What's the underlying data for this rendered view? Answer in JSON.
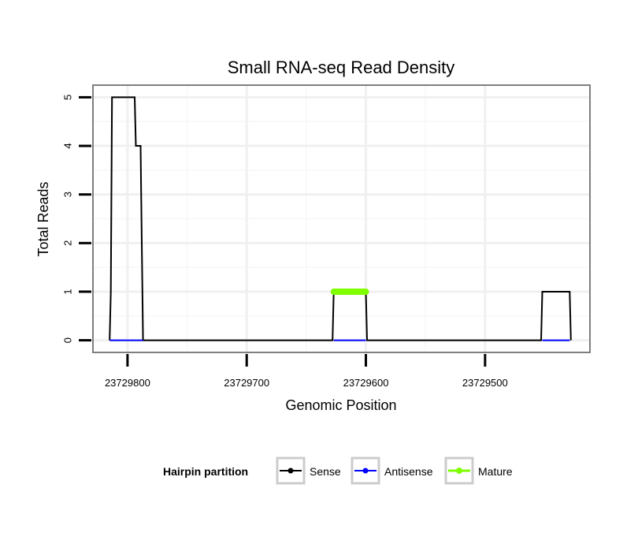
{
  "chart_data": {
    "type": "line",
    "title": "Small RNA-seq Read Density",
    "xlabel": "Genomic Position",
    "ylabel": "Total Reads",
    "xlim": [
      23729829,
      23729412
    ],
    "ylim": [
      -0.25,
      5.25
    ],
    "x_reversed": true,
    "xticks": [
      23729800,
      23729700,
      23729600,
      23729500
    ],
    "xtick_labels": [
      "23729800",
      "23729700",
      "23729600",
      "23729500"
    ],
    "yticks": [
      0,
      1,
      2,
      3,
      4,
      5
    ],
    "ytick_labels": [
      "0",
      "1",
      "2",
      "3",
      "4",
      "5"
    ],
    "grid": true,
    "legend": {
      "title": "Hairpin partition",
      "position": "bottom",
      "entries": [
        {
          "name": "Sense",
          "color": "#000000"
        },
        {
          "name": "Antisense",
          "color": "#0000ff"
        },
        {
          "name": "Mature",
          "color": "#7fff00"
        }
      ]
    },
    "series": [
      {
        "name": "Sense",
        "color": "#000000",
        "x": [
          23729815,
          23729814,
          23729813,
          23729794,
          23729793,
          23729789,
          23729788,
          23729787,
          23729786,
          23729628,
          23729627,
          23729600,
          23729599,
          23729453,
          23729452,
          23729429,
          23729428
        ],
        "y": [
          0,
          1,
          5,
          5,
          4,
          4,
          2,
          0,
          0,
          0,
          1,
          1,
          0,
          0,
          1,
          1,
          0
        ]
      },
      {
        "name": "Antisense",
        "color": "#0000ff",
        "x": [
          23729815,
          23729787
        ],
        "y": [
          0,
          0
        ]
      },
      {
        "name": "Antisense",
        "color": "#0000ff",
        "x": [
          23729627,
          23729600
        ],
        "y": [
          0,
          0
        ]
      },
      {
        "name": "Antisense",
        "color": "#0000ff",
        "x": [
          23729452,
          23729429
        ],
        "y": [
          0,
          0
        ]
      },
      {
        "name": "Mature",
        "color": "#7fff00",
        "x": [
          23729627,
          23729600
        ],
        "y": [
          1,
          1
        ]
      }
    ]
  }
}
